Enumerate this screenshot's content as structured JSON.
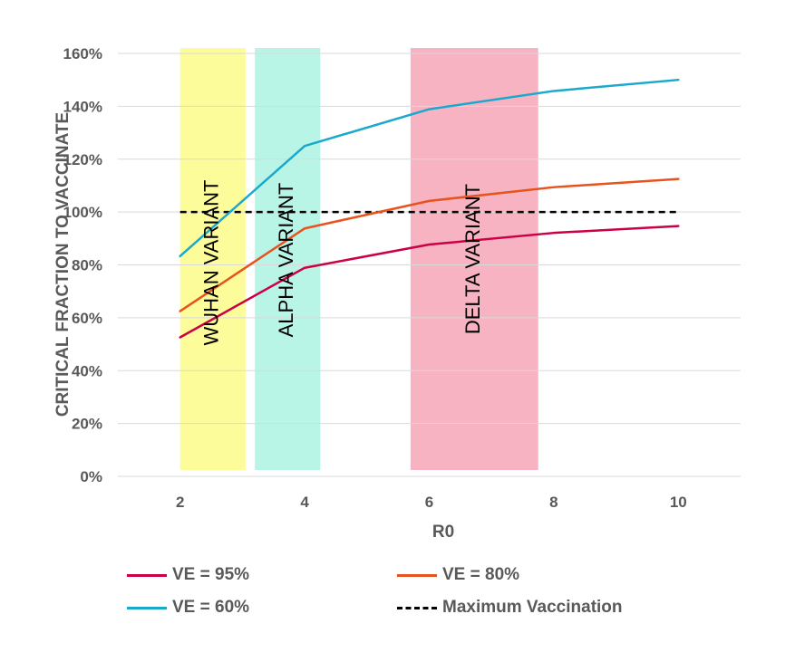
{
  "chart_data": {
    "type": "line",
    "title": "",
    "xlabel": "R0",
    "ylabel": "CRITICAL FRACTION TO VACCINATE",
    "xlim": [
      1,
      11
    ],
    "ylim": [
      0,
      160
    ],
    "x_ticks": [
      2,
      4,
      6,
      8,
      10
    ],
    "x_tick_labels": [
      "2",
      "4",
      "6",
      "8",
      "10"
    ],
    "y_ticks": [
      0,
      20,
      40,
      60,
      80,
      100,
      120,
      140,
      160
    ],
    "y_tick_labels": [
      "0%",
      "20%",
      "40%",
      "60%",
      "80%",
      "100%",
      "120%",
      "140%",
      "160%"
    ],
    "grid": "horizontal",
    "legend_position": "bottom",
    "x": [
      2,
      4,
      6,
      8,
      10
    ],
    "series": [
      {
        "name": "VE = 95%",
        "color": "#cc0044",
        "dash": "solid",
        "values": [
          52.6,
          78.9,
          87.7,
          92.1,
          94.7
        ]
      },
      {
        "name": "VE = 80%",
        "color": "#e8521c",
        "dash": "solid",
        "values": [
          62.5,
          93.8,
          104.2,
          109.4,
          112.5
        ]
      },
      {
        "name": "VE = 60%",
        "color": "#1aa8cc",
        "dash": "solid",
        "values": [
          83.3,
          125.0,
          138.9,
          145.8,
          150.0
        ]
      },
      {
        "name": "Maximum Vaccination",
        "color": "#000000",
        "dash": "dashed",
        "values": [
          100,
          100,
          100,
          100,
          100
        ]
      }
    ],
    "bands": [
      {
        "label": "WUHAN VARIANT",
        "x_range": [
          2,
          3.05
        ],
        "color": "#fcfc9a"
      },
      {
        "label": "ALPHA VARIANT",
        "x_range": [
          3.2,
          4.25
        ],
        "color": "#b8f5e6"
      },
      {
        "label": "DELTA VARIANT",
        "x_range": [
          5.7,
          7.75
        ],
        "color": "#f7b3c2"
      }
    ]
  }
}
